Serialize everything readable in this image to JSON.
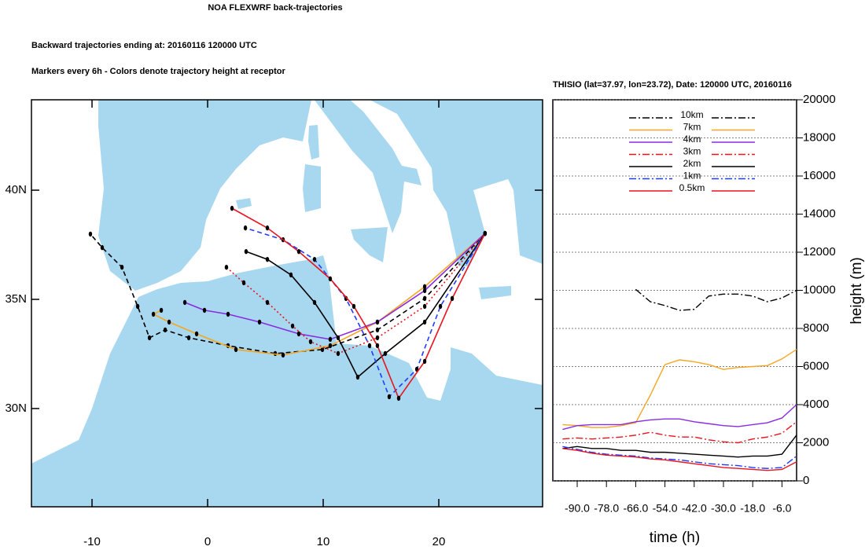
{
  "chart_data": [
    {
      "type": "trajectory",
      "title": "NOA FLEXWRF back-trajectories",
      "subtitle": "Backward trajectories ending at: 20160116  120000 UTC",
      "annotation": "Markers every 6h - Colors denote trajectory height at receptor",
      "xlim": [
        -15.24,
        28.98
      ],
      "ylim": [
        25.5,
        44.14
      ],
      "xticks": [
        -10,
        0,
        10,
        20
      ],
      "yticks": [
        {
          "value": 30,
          "label": "30N"
        },
        {
          "value": 35,
          "label": "35N"
        },
        {
          "value": 40,
          "label": "40N"
        }
      ],
      "series": [
        {
          "color": "#000000",
          "dash": "dashed",
          "x": [
            24.0,
            18.78,
            14.69,
            9.93,
            5.85,
            1.77,
            -1.63,
            -3.67,
            -5.03,
            -6.05,
            -7.41,
            -9.12,
            -10.14
          ],
          "y": [
            38.02,
            35.04,
            33.6,
            32.7,
            32.52,
            32.88,
            33.24,
            33.6,
            33.24,
            34.68,
            36.47,
            37.37,
            37.99
          ]
        },
        {
          "color": "#f5a623",
          "dash": "solid",
          "x": [
            24.0,
            18.78,
            14.69,
            10.61,
            6.53,
            2.45,
            -0.95,
            -3.33,
            -4.69,
            -4.01
          ],
          "y": [
            38.02,
            35.58,
            33.96,
            32.88,
            32.45,
            32.7,
            33.42,
            33.96,
            34.32,
            34.5
          ]
        },
        {
          "color": "#8a2be2",
          "dash": "solid",
          "x": [
            24.0,
            18.78,
            14.69,
            10.61,
            7.89,
            4.49,
            1.77,
            -0.27,
            -1.97
          ],
          "y": [
            38.02,
            35.4,
            33.96,
            33.17,
            33.42,
            33.96,
            34.32,
            34.5,
            34.86
          ]
        },
        {
          "color": "#e8141e",
          "dash": "dotted",
          "x": [
            24.0,
            18.78,
            14.69,
            11.29,
            8.91,
            7.35,
            5.17,
            3.13,
            1.63
          ],
          "y": [
            38.02,
            34.68,
            33.24,
            32.52,
            33.06,
            33.78,
            34.86,
            35.76,
            36.47
          ]
        },
        {
          "color": "#000000",
          "dash": "solid",
          "x": [
            24.0,
            18.78,
            15.37,
            12.99,
            11.29,
            9.25,
            7.21,
            5.17,
            3.33
          ],
          "y": [
            38.02,
            33.96,
            32.52,
            31.44,
            33.24,
            34.86,
            36.12,
            36.83,
            37.19
          ]
        },
        {
          "color": "#1e3cff",
          "dash": "dashed",
          "x": [
            24.0,
            20.14,
            18.1,
            15.71,
            14.01,
            11.97,
            9.25,
            6.53,
            3.27
          ],
          "y": [
            38.02,
            34.68,
            31.8,
            30.54,
            32.88,
            35.04,
            36.83,
            37.73,
            38.27
          ]
        },
        {
          "color": "#e8141e",
          "dash": "solid",
          "x": [
            24.0,
            21.16,
            18.78,
            16.53,
            14.69,
            12.65,
            10.61,
            7.89,
            5.17,
            2.11
          ],
          "y": [
            38.02,
            35.04,
            32.16,
            30.47,
            32.88,
            34.68,
            35.94,
            37.19,
            38.27,
            39.17
          ]
        }
      ]
    },
    {
      "type": "line",
      "title": "THISIO (lat=37.97,  lon=23.72), Date: 120000 UTC, 20160116",
      "xlabel": "time (h)",
      "ylabel": "height (m)",
      "xlim": [
        -100,
        0
      ],
      "ylim": [
        0,
        20000
      ],
      "xticks": [
        {
          "value": -90,
          "label": "-90.0"
        },
        {
          "value": -78,
          "label": "-78.0"
        },
        {
          "value": -66,
          "label": "-66.0"
        },
        {
          "value": -54,
          "label": "-54.0"
        },
        {
          "value": -42,
          "label": "-42.0"
        },
        {
          "value": -30,
          "label": "-30.0"
        },
        {
          "value": -18,
          "label": "-18.0"
        },
        {
          "value": -6,
          "label": "-6.0"
        }
      ],
      "yticks": [
        0,
        2000,
        4000,
        6000,
        8000,
        10000,
        12000,
        14000,
        16000,
        18000,
        20000
      ],
      "grid": true,
      "legend": "top",
      "x": [
        -96,
        -90,
        -84,
        -78,
        -72,
        -66,
        -60,
        -54,
        -48,
        -42,
        -36,
        -30,
        -24,
        -18,
        -12,
        -6,
        0
      ],
      "series": [
        {
          "name": "10km",
          "color": "#000000",
          "dash": "dashdot",
          "values": [
            null,
            null,
            null,
            null,
            null,
            10050,
            9400,
            9200,
            8950,
            9000,
            9700,
            9800,
            9800,
            9700,
            9400,
            9600,
            10000
          ]
        },
        {
          "name": "7km",
          "color": "#f5a623",
          "dash": "solid",
          "values": [
            2950,
            2900,
            2800,
            2800,
            2900,
            3050,
            4500,
            6100,
            6350,
            6250,
            6100,
            5850,
            5950,
            6000,
            6050,
            6400,
            6900
          ]
        },
        {
          "name": "4km",
          "color": "#8a2be2",
          "dash": "solid",
          "values": [
            2700,
            2900,
            2950,
            2950,
            2950,
            3100,
            3200,
            3250,
            3250,
            3100,
            3000,
            2900,
            2850,
            2950,
            3050,
            3300,
            4000
          ]
        },
        {
          "name": "3km",
          "color": "#e8141e",
          "dash": "dashdot",
          "values": [
            2200,
            2250,
            2200,
            2250,
            2300,
            2400,
            2550,
            2400,
            2300,
            2300,
            2150,
            2050,
            2000,
            2200,
            2300,
            2500,
            3100
          ]
        },
        {
          "name": "2km",
          "color": "#000000",
          "dash": "solid",
          "values": [
            1700,
            1800,
            1700,
            1700,
            1600,
            1600,
            1500,
            1500,
            1450,
            1400,
            1350,
            1300,
            1250,
            1300,
            1300,
            1400,
            2400
          ]
        },
        {
          "name": "1km",
          "color": "#1e3cff",
          "dash": "dashdot",
          "values": [
            1800,
            1650,
            1500,
            1400,
            1350,
            1300,
            1200,
            1150,
            1100,
            1000,
            900,
            850,
            800,
            700,
            650,
            700,
            1300
          ]
        },
        {
          "name": "0.5km",
          "color": "#e8141e",
          "dash": "solid",
          "values": [
            1700,
            1600,
            1450,
            1350,
            1300,
            1250,
            1150,
            1100,
            1000,
            900,
            800,
            700,
            650,
            600,
            550,
            600,
            1000
          ]
        }
      ]
    }
  ]
}
